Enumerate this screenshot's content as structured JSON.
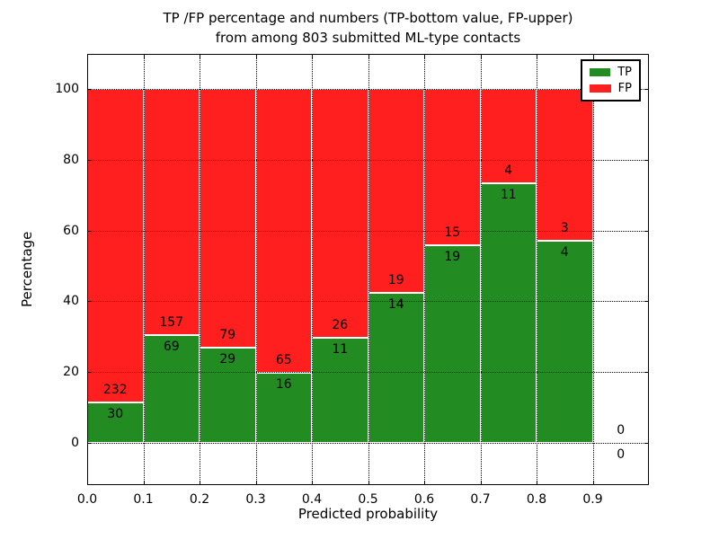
{
  "title": {
    "line1": "TP /FP percentage and numbers (TP-bottom value, FP-upper)",
    "line2": "from among 803 submitted ML-type contacts"
  },
  "chart_data": {
    "type": "bar",
    "stacked": true,
    "title": "TP /FP percentage and numbers (TP-bottom value, FP-upper) from among 803 submitted ML-type contacts",
    "xlabel": "Predicted probability",
    "ylabel": "Percentage",
    "total_contacts": 803,
    "xlim": [
      0.0,
      1.0
    ],
    "ylim": [
      -12,
      110
    ],
    "xticks": [
      "0.0",
      "0.1",
      "0.2",
      "0.3",
      "0.4",
      "0.5",
      "0.6",
      "0.7",
      "0.8",
      "0.9"
    ],
    "yticks": [
      0,
      20,
      40,
      60,
      80,
      100
    ],
    "grid": true,
    "grid_style": "dotted",
    "legend_position": "upper right",
    "bar_edge_color": "#ffffff",
    "series": [
      {
        "name": "TP",
        "color": "#228b22",
        "position": "bottom"
      },
      {
        "name": "FP",
        "color": "#ff1f1f",
        "position": "top"
      }
    ],
    "bins": [
      {
        "range": [
          0.0,
          0.1
        ],
        "tp": 30,
        "fp": 232
      },
      {
        "range": [
          0.1,
          0.2
        ],
        "tp": 69,
        "fp": 157
      },
      {
        "range": [
          0.2,
          0.3
        ],
        "tp": 29,
        "fp": 79
      },
      {
        "range": [
          0.3,
          0.4
        ],
        "tp": 16,
        "fp": 65
      },
      {
        "range": [
          0.4,
          0.5
        ],
        "tp": 11,
        "fp": 26
      },
      {
        "range": [
          0.5,
          0.6
        ],
        "tp": 14,
        "fp": 19
      },
      {
        "range": [
          0.6,
          0.7
        ],
        "tp": 19,
        "fp": 15
      },
      {
        "range": [
          0.7,
          0.8
        ],
        "tp": 11,
        "fp": 4
      },
      {
        "range": [
          0.8,
          0.9
        ],
        "tp": 4,
        "fp": 3
      },
      {
        "range": [
          0.9,
          1.0
        ],
        "tp": 0,
        "fp": 0
      }
    ]
  }
}
